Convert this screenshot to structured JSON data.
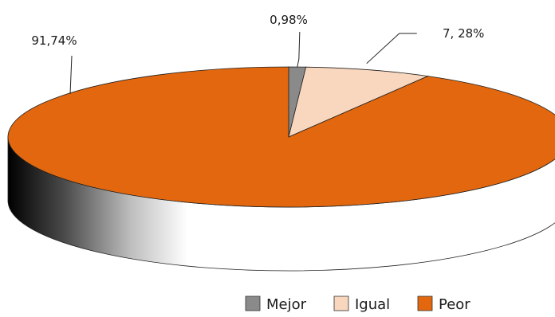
{
  "chart_data": {
    "type": "pie",
    "style": "3d",
    "categories": [
      "Mejor",
      "Igual",
      "Peor"
    ],
    "values": [
      0.98,
      7.28,
      91.74
    ],
    "data_labels": [
      "0,98%",
      "7, 28%",
      "91,74%"
    ],
    "colors": [
      "#8a8a8a",
      "#f8d7be",
      "#e2670e"
    ],
    "legend": {
      "placement": "bottom-right",
      "items": [
        {
          "label": "Mejor",
          "color": "#8a8a8a"
        },
        {
          "label": "Igual",
          "color": "#f8d7be"
        },
        {
          "label": "Peor",
          "color": "#e2670e"
        }
      ]
    }
  }
}
